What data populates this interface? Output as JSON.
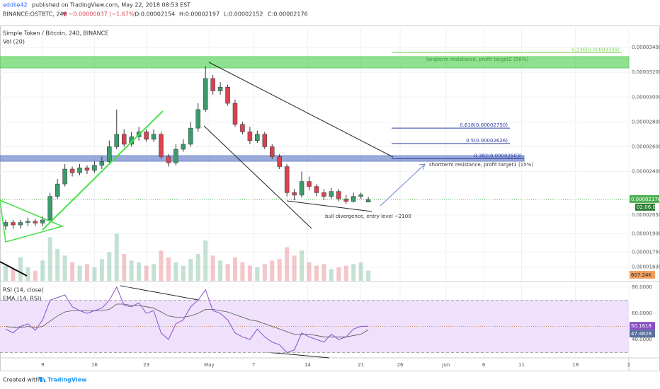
{
  "header": {
    "publisher": "eddiie42",
    "published": "published on TradingView.com, May 22, 2018 08:53 EST",
    "symbol": "BINANCE:OSTBTC, 240",
    "change": "▼ −0.00000037 (−1.67%)",
    "ohlc": [
      "O:0.00002154",
      "H:0.00002197",
      "L:0.00002152",
      "C:0.00002176"
    ]
  },
  "chart_data": {
    "type": "candlestick",
    "title": "Simple Token / Bitcoin, 240, BINANCE",
    "up_color": "#3d9a6c",
    "down_color": "#d9434f",
    "open": [
      1.96e-05,
      1.99e-05,
      1.97e-05,
      1.99e-05,
      2e-05,
      1.985e-05,
      2.01e-05,
      2.2e-05,
      2.3e-05,
      2.42e-05,
      2.39e-05,
      2.43e-05,
      2.41e-05,
      2.45e-05,
      2.48e-05,
      2.6e-05,
      2.7e-05,
      2.62e-05,
      2.68e-05,
      2.72e-05,
      2.66e-05,
      2.7e-05,
      2.52e-05,
      2.47e-05,
      2.58e-05,
      2.62e-05,
      2.75e-05,
      2.9e-05,
      3.15e-05,
      3.05e-05,
      3.08e-05,
      2.95e-05,
      2.78e-05,
      2.72e-05,
      2.65e-05,
      2.7e-05,
      2.6e-05,
      2.52e-05,
      2.44e-05,
      2.23e-05,
      2.21e-05,
      2.32e-05,
      2.28e-05,
      2.23e-05,
      2.2e-05,
      2.24e-05,
      2.18e-05,
      2.16e-05,
      2.2e-05,
      2.154e-05
    ],
    "high": [
      2.01e-05,
      2.01e-05,
      2.01e-05,
      2.03e-05,
      2.02e-05,
      2.04e-05,
      2.23e-05,
      2.34e-05,
      2.46e-05,
      2.44e-05,
      2.46e-05,
      2.45e-05,
      2.48e-05,
      2.52e-05,
      2.65e-05,
      2.9e-05,
      2.74e-05,
      2.72e-05,
      2.76e-05,
      2.74e-05,
      2.74e-05,
      2.72e-05,
      2.54e-05,
      2.62e-05,
      2.66e-05,
      2.8e-05,
      2.95e-05,
      3.25e-05,
      3.18e-05,
      3.12e-05,
      3.1e-05,
      2.98e-05,
      2.8e-05,
      2.76e-05,
      2.73e-05,
      2.72e-05,
      2.62e-05,
      2.54e-05,
      2.46e-05,
      2.26e-05,
      2.4e-05,
      2.36e-05,
      2.3e-05,
      2.26e-05,
      2.27e-05,
      2.26e-05,
      2.21e-05,
      2.23e-05,
      2.23e-05,
      2.197e-05
    ],
    "low": [
      1.93e-05,
      1.94e-05,
      1.94e-05,
      1.96e-05,
      1.96e-05,
      1.96e-05,
      2e-05,
      2.18e-05,
      2.28e-05,
      2.36e-05,
      2.37e-05,
      2.38e-05,
      2.39e-05,
      2.42e-05,
      2.46e-05,
      2.58e-05,
      2.6e-05,
      2.6e-05,
      2.65e-05,
      2.64e-05,
      2.64e-05,
      2.5e-05,
      2.44e-05,
      2.45e-05,
      2.56e-05,
      2.6e-05,
      2.72e-05,
      2.88e-05,
      3.02e-05,
      3.02e-05,
      2.93e-05,
      2.76e-05,
      2.7e-05,
      2.62e-05,
      2.63e-05,
      2.58e-05,
      2.5e-05,
      2.42e-05,
      2.2e-05,
      2.17e-05,
      2.19e-05,
      2.25e-05,
      2.2e-05,
      2.17e-05,
      2.18e-05,
      2.16e-05,
      2.14e-05,
      2.15e-05,
      2.18e-05,
      2.152e-05
    ],
    "close": [
      1.99e-05,
      1.97e-05,
      1.99e-05,
      2e-05,
      1.985e-05,
      2.01e-05,
      2.2e-05,
      2.3e-05,
      2.42e-05,
      2.39e-05,
      2.43e-05,
      2.41e-05,
      2.45e-05,
      2.48e-05,
      2.6e-05,
      2.7e-05,
      2.62e-05,
      2.68e-05,
      2.72e-05,
      2.66e-05,
      2.7e-05,
      2.52e-05,
      2.47e-05,
      2.58e-05,
      2.62e-05,
      2.75e-05,
      2.9e-05,
      3.15e-05,
      3.05e-05,
      3.08e-05,
      2.95e-05,
      2.78e-05,
      2.72e-05,
      2.65e-05,
      2.7e-05,
      2.6e-05,
      2.52e-05,
      2.44e-05,
      2.23e-05,
      2.21e-05,
      2.32e-05,
      2.28e-05,
      2.23e-05,
      2.2e-05,
      2.24e-05,
      2.18e-05,
      2.16e-05,
      2.2e-05,
      2.213e-05,
      2.176e-05
    ],
    "xlim": [
      0,
      84.2
    ],
    "xticks": [
      {
        "value": 5,
        "label": "9"
      },
      {
        "value": 12,
        "label": "16"
      },
      {
        "value": 19,
        "label": "23"
      },
      {
        "value": 27.5,
        "label": "May"
      },
      {
        "value": 33.5,
        "label": "7"
      },
      {
        "value": 40.8,
        "label": "14"
      },
      {
        "value": 48,
        "label": "21"
      },
      {
        "value": 53.3,
        "label": "26"
      },
      {
        "value": 59.5,
        "label": "Jun"
      },
      {
        "value": 64.6,
        "label": "6"
      },
      {
        "value": 69.7,
        "label": "11"
      },
      {
        "value": 77,
        "label": "18"
      },
      {
        "value": 84.2,
        "label": "2"
      }
    ],
    "ylim": [
      1.52e-05,
      3.577e-05
    ],
    "yticks": [
      {
        "value": 3.4e-05,
        "label": "0.00003400"
      },
      {
        "value": 3.2e-05,
        "label": "0.00003200"
      },
      {
        "value": 3e-05,
        "label": "0.00003000"
      },
      {
        "value": 2.8e-05,
        "label": "0.00002800"
      },
      {
        "value": 2.6e-05,
        "label": "0.00002600"
      },
      {
        "value": 2.4e-05,
        "label": "0.00002400"
      },
      {
        "value": 2.05e-05,
        "label": "0.00002050"
      },
      {
        "value": 1.9e-05,
        "label": "0.00001900"
      },
      {
        "value": 1.75e-05,
        "label": "0.00001750"
      },
      {
        "value": 1.63e-05,
        "label": "0.00001630"
      }
    ],
    "last_price_label": "0.00002176",
    "countdown": "02:06:09",
    "price_line_color": "#4caf50",
    "zones": [
      {
        "from": 3.235e-05,
        "to": 3.326e-05,
        "color": "#5fd35f"
      },
      {
        "from": 2.483e-05,
        "to": 2.528e-05,
        "color": "#6f86c9"
      }
    ],
    "fibs": [
      {
        "value": 3.359e-05,
        "label": "0.236(0.00003359)",
        "color": "#7ed957"
      },
      {
        "value": 2.75e-05,
        "label": "0.618(0.00002750)",
        "color": "#2a3a9e"
      },
      {
        "value": 2.626e-05,
        "label": "0.5(0.00002626)",
        "color": "#2a3a9e"
      },
      {
        "value": 2.503e-05,
        "label": "0.382(0.00002503)",
        "color": "#2a3a9e"
      }
    ],
    "annotations": [
      "longterm resistance, profit target2 (50%)",
      "shortterm resistance, profit target1 (15%)",
      "bull divergence, entry level ~2100"
    ],
    "volume": {
      "title": "Vol (20)",
      "lim": [
        0,
        4000
      ],
      "last_label": "607.24K",
      "values": [
        900,
        700,
        1400,
        800,
        600,
        1200,
        2600,
        1900,
        1500,
        1100,
        900,
        1000,
        800,
        1300,
        1700,
        2800,
        1600,
        1200,
        1100,
        900,
        1000,
        1800,
        1400,
        1100,
        900,
        1300,
        1600,
        2400,
        1500,
        1200,
        1000,
        1400,
        1100,
        900,
        800,
        1000,
        1200,
        1300,
        2000,
        1500,
        1800,
        1100,
        900,
        1000,
        700,
        800,
        900,
        1000,
        1100,
        607.24
      ]
    },
    "rsi": {
      "title": "RSI (14, close)",
      "ema_title": "EMA (14, RSI)",
      "color": "#8a4fc7",
      "ema_color": "#555",
      "band": [
        30,
        70
      ],
      "midline": 50,
      "ylim": [
        26.5,
        83.2
      ],
      "yticks": [
        {
          "value": 80,
          "label": "80.0000"
        },
        {
          "value": 60,
          "label": "60.0000"
        },
        {
          "value": 40,
          "label": "40.0000"
        }
      ],
      "values": [
        48,
        45,
        50,
        52,
        47,
        55,
        70,
        72,
        74,
        65,
        62,
        60,
        62,
        64,
        70,
        80,
        66,
        65,
        68,
        60,
        62,
        45,
        40,
        52,
        55,
        65,
        70,
        78,
        62,
        60,
        55,
        45,
        42,
        40,
        48,
        42,
        38,
        36,
        30,
        32,
        45,
        42,
        40,
        38,
        44,
        40,
        42,
        48,
        50,
        50.1618
      ],
      "ema": [
        50,
        49,
        49,
        50,
        49,
        50,
        54,
        58,
        61,
        62,
        62,
        62,
        62,
        62,
        63,
        67,
        67,
        66,
        66,
        65,
        64,
        61,
        58,
        57,
        57,
        58,
        60,
        63,
        63,
        62,
        61,
        59,
        57,
        55,
        54,
        52,
        50,
        48,
        46,
        44,
        44,
        44,
        43,
        42,
        42,
        42,
        42,
        43,
        44,
        47.4829
      ],
      "last_label": "50.1618",
      "ema_last_label": "47.4829"
    }
  },
  "footer": {
    "created": "Created with",
    "brand": "TradingView"
  }
}
